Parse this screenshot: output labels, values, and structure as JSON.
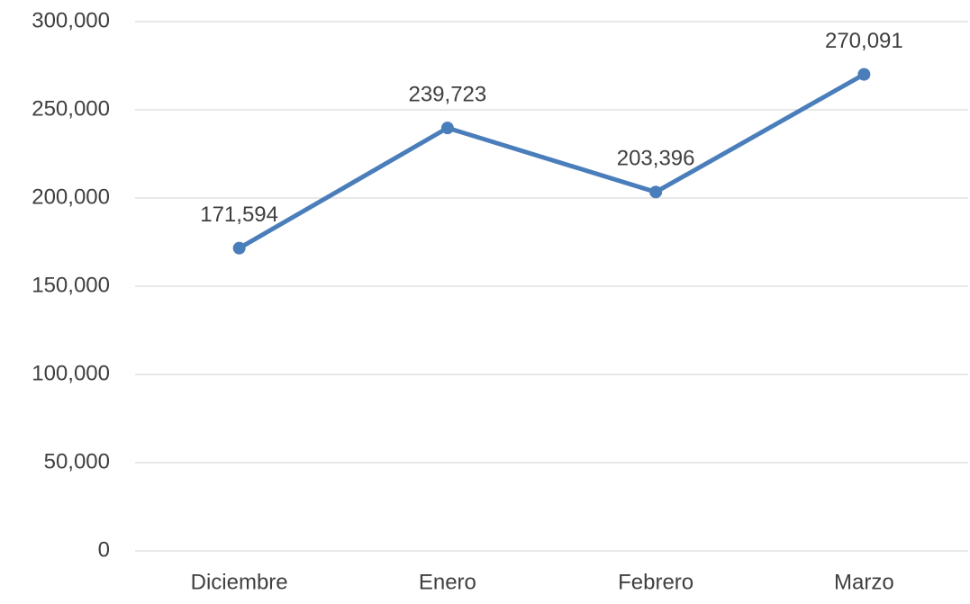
{
  "chart_data": {
    "type": "line",
    "categories": [
      "Diciembre",
      "Enero",
      "Febrero",
      "Marzo"
    ],
    "series": [
      {
        "color": "#4a7ebb",
        "values": [
          171594,
          239723,
          203396,
          270091
        ],
        "value_labels": [
          "171,594",
          "239,723",
          "203,396",
          "270,091"
        ]
      }
    ],
    "ylim": [
      0,
      300000
    ],
    "yticks": [
      0,
      {
        "value": 50000,
        "label": "50,000"
      },
      {
        "value": 100000,
        "label": "100,000"
      },
      {
        "value": 150000,
        "label": "150,000"
      },
      {
        "value": 200000,
        "label": "200,000"
      },
      {
        "value": 250000,
        "label": "250,000"
      },
      {
        "value": 300000,
        "label": "300,000"
      }
    ],
    "grid": true
  }
}
